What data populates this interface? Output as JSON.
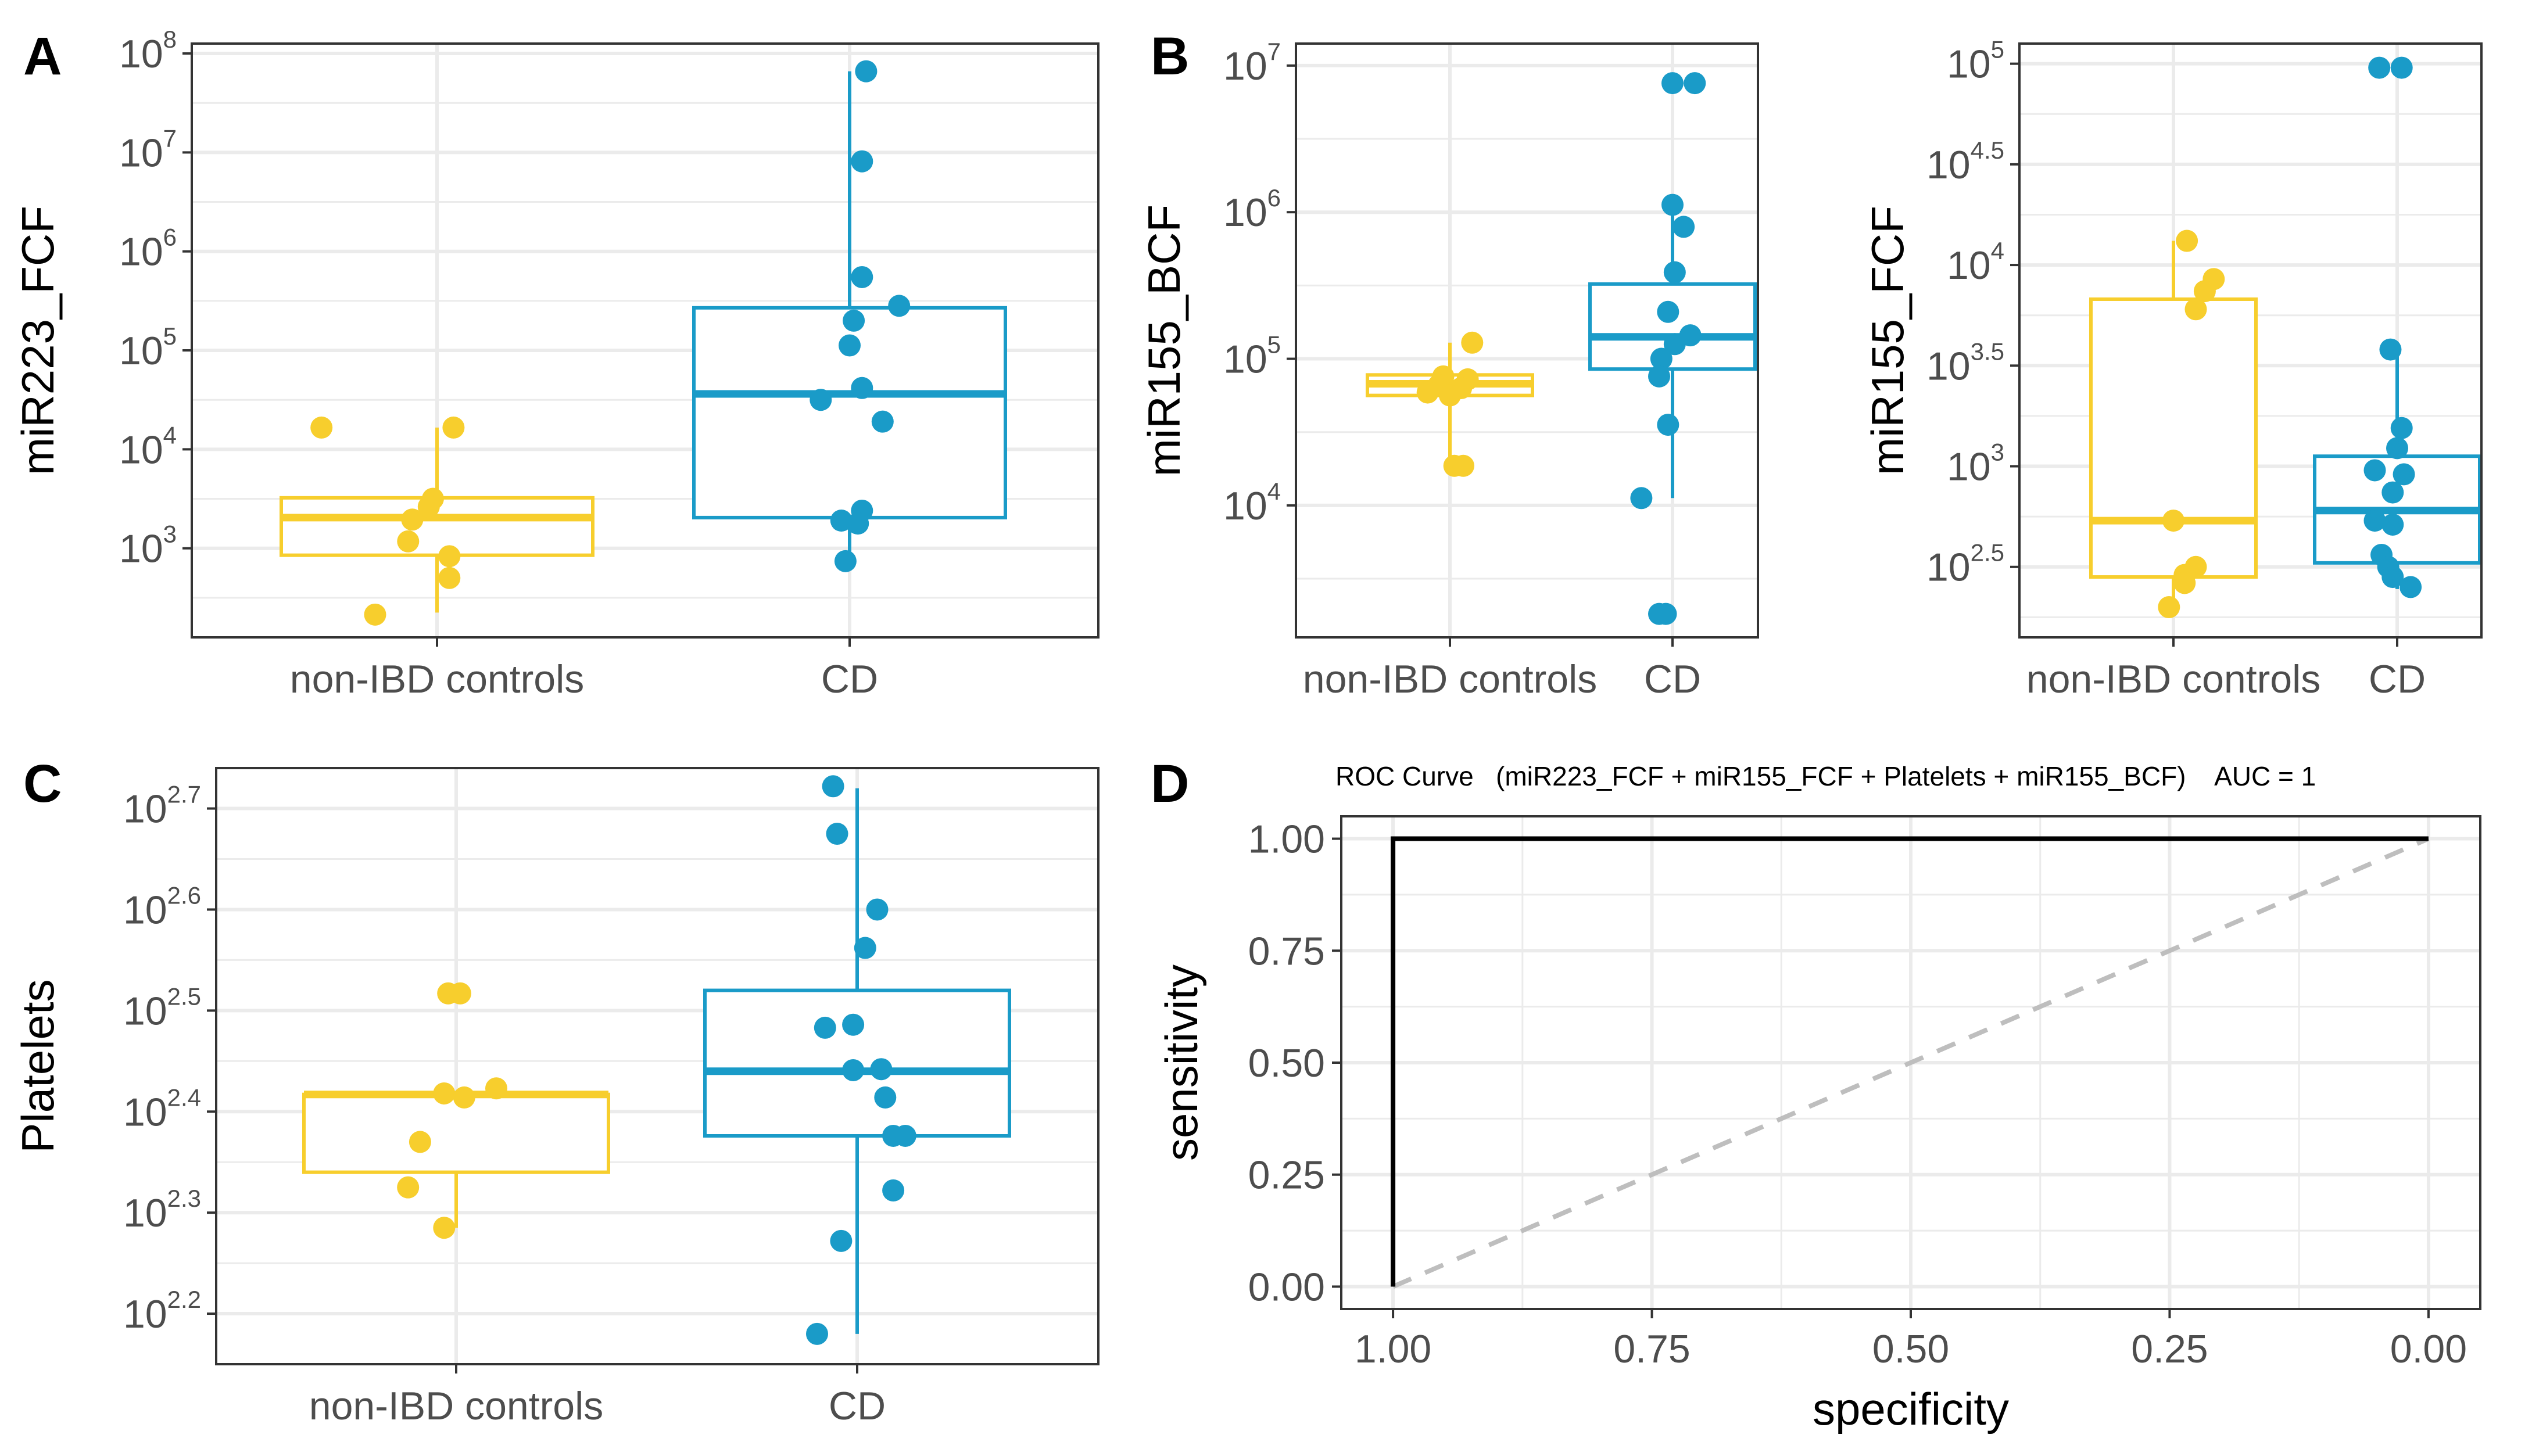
{
  "colors": {
    "control": "#F7CE2D",
    "cd": "#1A9BC8",
    "grid": "#EBEBEB",
    "frame": "#333333",
    "diag": "#BEBEBE"
  },
  "panel_labels": {
    "A": "A",
    "B": "B",
    "C": "C",
    "D": "D"
  },
  "chart_data": [
    {
      "id": "A",
      "type": "box",
      "scale": "log10",
      "ylabel": "miR223_FCF",
      "categories": [
        "non-IBD controls",
        "CD"
      ],
      "ylim_log10": [
        2.1,
        8.1
      ],
      "ticks_log10": [
        3,
        4,
        5,
        6,
        7,
        8
      ],
      "tick_labels": [
        {
          "base": "10",
          "exp": "3"
        },
        {
          "base": "10",
          "exp": "4"
        },
        {
          "base": "10",
          "exp": "5"
        },
        {
          "base": "10",
          "exp": "6"
        },
        {
          "base": "10",
          "exp": "7"
        },
        {
          "base": "10",
          "exp": "8"
        }
      ],
      "boxes": [
        {
          "q1": 2.93,
          "median": 3.31,
          "q3": 3.51,
          "lower": 2.35,
          "upper": 4.22
        },
        {
          "q1": 3.31,
          "median": 4.56,
          "q3": 5.43,
          "lower": 2.86,
          "upper": 7.82
        }
      ],
      "points": [
        {
          "cat": 0,
          "jitter": -0.28,
          "y": 4.22
        },
        {
          "cat": 0,
          "jitter": 0.04,
          "y": 4.22
        },
        {
          "cat": 0,
          "jitter": -0.01,
          "y": 3.5
        },
        {
          "cat": 0,
          "jitter": -0.02,
          "y": 3.42
        },
        {
          "cat": 0,
          "jitter": -0.06,
          "y": 3.29
        },
        {
          "cat": 0,
          "jitter": -0.07,
          "y": 3.07
        },
        {
          "cat": 0,
          "jitter": 0.03,
          "y": 2.92
        },
        {
          "cat": 0,
          "jitter": 0.03,
          "y": 2.7
        },
        {
          "cat": 0,
          "jitter": -0.15,
          "y": 2.33
        },
        {
          "cat": 1,
          "jitter": 0.04,
          "y": 7.82
        },
        {
          "cat": 1,
          "jitter": 0.03,
          "y": 6.91
        },
        {
          "cat": 1,
          "jitter": 0.03,
          "y": 5.74
        },
        {
          "cat": 1,
          "jitter": 0.12,
          "y": 5.45
        },
        {
          "cat": 1,
          "jitter": 0.01,
          "y": 5.3
        },
        {
          "cat": 1,
          "jitter": 0.0,
          "y": 5.05
        },
        {
          "cat": 1,
          "jitter": 0.03,
          "y": 4.62
        },
        {
          "cat": 1,
          "jitter": -0.07,
          "y": 4.5
        },
        {
          "cat": 1,
          "jitter": 0.08,
          "y": 4.28
        },
        {
          "cat": 1,
          "jitter": 0.03,
          "y": 3.38
        },
        {
          "cat": 1,
          "jitter": -0.02,
          "y": 3.28
        },
        {
          "cat": 1,
          "jitter": 0.02,
          "y": 3.25
        },
        {
          "cat": 1,
          "jitter": -0.01,
          "y": 2.87
        }
      ]
    },
    {
      "id": "B1",
      "type": "box",
      "scale": "log10",
      "ylabel": "miR155_BCF",
      "categories": [
        "non-IBD controls",
        "CD"
      ],
      "ylim_log10": [
        3.1,
        7.15
      ],
      "ticks_log10": [
        4,
        5,
        6,
        7
      ],
      "tick_labels": [
        {
          "base": "10",
          "exp": "4"
        },
        {
          "base": "10",
          "exp": "5"
        },
        {
          "base": "10",
          "exp": "6"
        },
        {
          "base": "10",
          "exp": "7"
        }
      ],
      "boxes": [
        {
          "q1": 4.75,
          "median": 4.83,
          "q3": 4.89,
          "lower": 4.27,
          "upper": 5.11
        },
        {
          "q1": 4.93,
          "median": 5.15,
          "q3": 5.51,
          "lower": 4.05,
          "upper": 6.06
        }
      ],
      "points": [
        {
          "cat": 0,
          "jitter": 0.1,
          "y": 5.11
        },
        {
          "cat": 0,
          "jitter": -0.03,
          "y": 4.88
        },
        {
          "cat": 0,
          "jitter": 0.08,
          "y": 4.86
        },
        {
          "cat": 0,
          "jitter": -0.05,
          "y": 4.82
        },
        {
          "cat": 0,
          "jitter": 0.05,
          "y": 4.8
        },
        {
          "cat": 0,
          "jitter": -0.1,
          "y": 4.77
        },
        {
          "cat": 0,
          "jitter": 0.0,
          "y": 4.75
        },
        {
          "cat": 0,
          "jitter": 0.02,
          "y": 4.27
        },
        {
          "cat": 0,
          "jitter": 0.06,
          "y": 4.27
        },
        {
          "cat": 1,
          "jitter": 0.0,
          "y": 6.88
        },
        {
          "cat": 1,
          "jitter": 0.1,
          "y": 6.88
        },
        {
          "cat": 1,
          "jitter": 0.0,
          "y": 6.05
        },
        {
          "cat": 1,
          "jitter": 0.05,
          "y": 5.9
        },
        {
          "cat": 1,
          "jitter": 0.01,
          "y": 5.59
        },
        {
          "cat": 1,
          "jitter": -0.02,
          "y": 5.32
        },
        {
          "cat": 1,
          "jitter": 0.08,
          "y": 5.16
        },
        {
          "cat": 1,
          "jitter": 0.01,
          "y": 5.1
        },
        {
          "cat": 1,
          "jitter": -0.05,
          "y": 5.0
        },
        {
          "cat": 1,
          "jitter": -0.06,
          "y": 4.88
        },
        {
          "cat": 1,
          "jitter": -0.02,
          "y": 4.55
        },
        {
          "cat": 1,
          "jitter": -0.14,
          "y": 4.05
        },
        {
          "cat": 1,
          "jitter": -0.06,
          "y": 3.26
        },
        {
          "cat": 1,
          "jitter": -0.03,
          "y": 3.26
        }
      ]
    },
    {
      "id": "B2",
      "type": "box",
      "scale": "log10",
      "ylabel": "miR155_FCF",
      "categories": [
        "non-IBD controls",
        "CD"
      ],
      "ylim_log10": [
        2.15,
        5.1
      ],
      "ticks_log10": [
        2.5,
        3,
        3.5,
        4,
        4.5,
        5
      ],
      "tick_labels": [
        {
          "base": "10",
          "exp": "2.5"
        },
        {
          "base": "10",
          "exp": "3"
        },
        {
          "base": "10",
          "exp": "3.5"
        },
        {
          "base": "10",
          "exp": "4"
        },
        {
          "base": "10",
          "exp": "4.5"
        },
        {
          "base": "10",
          "exp": "5"
        }
      ],
      "boxes": [
        {
          "q1": 2.45,
          "median": 2.73,
          "q3": 3.83,
          "lower": 2.3,
          "upper": 4.12
        },
        {
          "q1": 2.52,
          "median": 2.78,
          "q3": 3.05,
          "lower": 2.39,
          "upper": 3.58
        }
      ],
      "points": [
        {
          "cat": 0,
          "jitter": 0.06,
          "y": 4.12
        },
        {
          "cat": 0,
          "jitter": 0.18,
          "y": 3.93
        },
        {
          "cat": 0,
          "jitter": 0.14,
          "y": 3.87
        },
        {
          "cat": 0,
          "jitter": 0.1,
          "y": 3.78
        },
        {
          "cat": 0,
          "jitter": 0.0,
          "y": 2.73
        },
        {
          "cat": 0,
          "jitter": 0.1,
          "y": 2.5
        },
        {
          "cat": 0,
          "jitter": 0.05,
          "y": 2.46
        },
        {
          "cat": 0,
          "jitter": 0.05,
          "y": 2.42
        },
        {
          "cat": 0,
          "jitter": -0.02,
          "y": 2.3
        },
        {
          "cat": 1,
          "jitter": -0.08,
          "y": 4.98
        },
        {
          "cat": 1,
          "jitter": 0.02,
          "y": 4.98
        },
        {
          "cat": 1,
          "jitter": -0.03,
          "y": 3.58
        },
        {
          "cat": 1,
          "jitter": 0.02,
          "y": 3.19
        },
        {
          "cat": 1,
          "jitter": 0.0,
          "y": 3.09
        },
        {
          "cat": 1,
          "jitter": -0.1,
          "y": 2.98
        },
        {
          "cat": 1,
          "jitter": 0.03,
          "y": 2.96
        },
        {
          "cat": 1,
          "jitter": -0.02,
          "y": 2.87
        },
        {
          "cat": 1,
          "jitter": -0.1,
          "y": 2.73
        },
        {
          "cat": 1,
          "jitter": -0.02,
          "y": 2.71
        },
        {
          "cat": 1,
          "jitter": -0.07,
          "y": 2.56
        },
        {
          "cat": 1,
          "jitter": -0.04,
          "y": 2.5
        },
        {
          "cat": 1,
          "jitter": -0.02,
          "y": 2.45
        },
        {
          "cat": 1,
          "jitter": 0.06,
          "y": 2.4
        }
      ]
    },
    {
      "id": "C",
      "type": "box",
      "scale": "log10",
      "ylabel": "Platelets",
      "categories": [
        "non-IBD controls",
        "CD"
      ],
      "ylim_log10": [
        2.15,
        2.74
      ],
      "ticks_log10": [
        2.2,
        2.3,
        2.4,
        2.5,
        2.6,
        2.7
      ],
      "tick_labels": [
        {
          "base": "10",
          "exp": "2.2"
        },
        {
          "base": "10",
          "exp": "2.3"
        },
        {
          "base": "10",
          "exp": "2.4"
        },
        {
          "base": "10",
          "exp": "2.5"
        },
        {
          "base": "10",
          "exp": "2.6"
        },
        {
          "base": "10",
          "exp": "2.7"
        }
      ],
      "boxes": [
        {
          "q1": 2.34,
          "median": 2.417,
          "q3": 2.417,
          "lower": 2.285,
          "upper": 2.34
        },
        {
          "q1": 2.376,
          "median": 2.44,
          "q3": 2.52,
          "lower": 2.18,
          "upper": 2.72
        }
      ],
      "points": [
        {
          "cat": 0,
          "jitter": -0.02,
          "y": 2.517
        },
        {
          "cat": 0,
          "jitter": 0.01,
          "y": 2.517
        },
        {
          "cat": 0,
          "jitter": 0.1,
          "y": 2.423
        },
        {
          "cat": 0,
          "jitter": -0.03,
          "y": 2.418
        },
        {
          "cat": 0,
          "jitter": 0.02,
          "y": 2.414
        },
        {
          "cat": 0,
          "jitter": -0.09,
          "y": 2.37
        },
        {
          "cat": 0,
          "jitter": -0.12,
          "y": 2.325
        },
        {
          "cat": 0,
          "jitter": -0.03,
          "y": 2.285
        },
        {
          "cat": 1,
          "jitter": -0.06,
          "y": 2.722
        },
        {
          "cat": 1,
          "jitter": -0.05,
          "y": 2.675
        },
        {
          "cat": 1,
          "jitter": 0.05,
          "y": 2.6
        },
        {
          "cat": 1,
          "jitter": 0.02,
          "y": 2.562
        },
        {
          "cat": 1,
          "jitter": -0.08,
          "y": 2.483
        },
        {
          "cat": 1,
          "jitter": -0.01,
          "y": 2.486
        },
        {
          "cat": 1,
          "jitter": -0.01,
          "y": 2.441
        },
        {
          "cat": 1,
          "jitter": 0.06,
          "y": 2.442
        },
        {
          "cat": 1,
          "jitter": 0.07,
          "y": 2.414
        },
        {
          "cat": 1,
          "jitter": 0.09,
          "y": 2.376
        },
        {
          "cat": 1,
          "jitter": 0.12,
          "y": 2.376
        },
        {
          "cat": 1,
          "jitter": 0.09,
          "y": 2.322
        },
        {
          "cat": 1,
          "jitter": -0.04,
          "y": 2.272
        },
        {
          "cat": 1,
          "jitter": -0.1,
          "y": 2.18
        }
      ]
    },
    {
      "id": "D",
      "type": "line",
      "title": "ROC Curve   (miR223_FCF + miR155_FCF + Platelets + miR155_BCF)    AUC = 1",
      "xlabel": "specificity",
      "ylabel": "sensitivity",
      "x_reversed": true,
      "xlim": [
        1.05,
        -0.05
      ],
      "ylim": [
        -0.05,
        1.05
      ],
      "xticks": [
        1.0,
        0.75,
        0.5,
        0.25,
        0.0
      ],
      "xtick_labels": [
        "1.00",
        "0.75",
        "0.50",
        "0.25",
        "0.00"
      ],
      "yticks": [
        0.0,
        0.25,
        0.5,
        0.75,
        1.0
      ],
      "ytick_labels": [
        "0.00",
        "0.25",
        "0.50",
        "0.75",
        "1.00"
      ],
      "curve": {
        "specificity": [
          1.0,
          1.0,
          0.0
        ],
        "sensitivity": [
          0.0,
          1.0,
          1.0
        ]
      },
      "reference": {
        "specificity": [
          1.0,
          0.0
        ],
        "sensitivity": [
          0.0,
          1.0
        ],
        "style": "dashed"
      }
    }
  ]
}
